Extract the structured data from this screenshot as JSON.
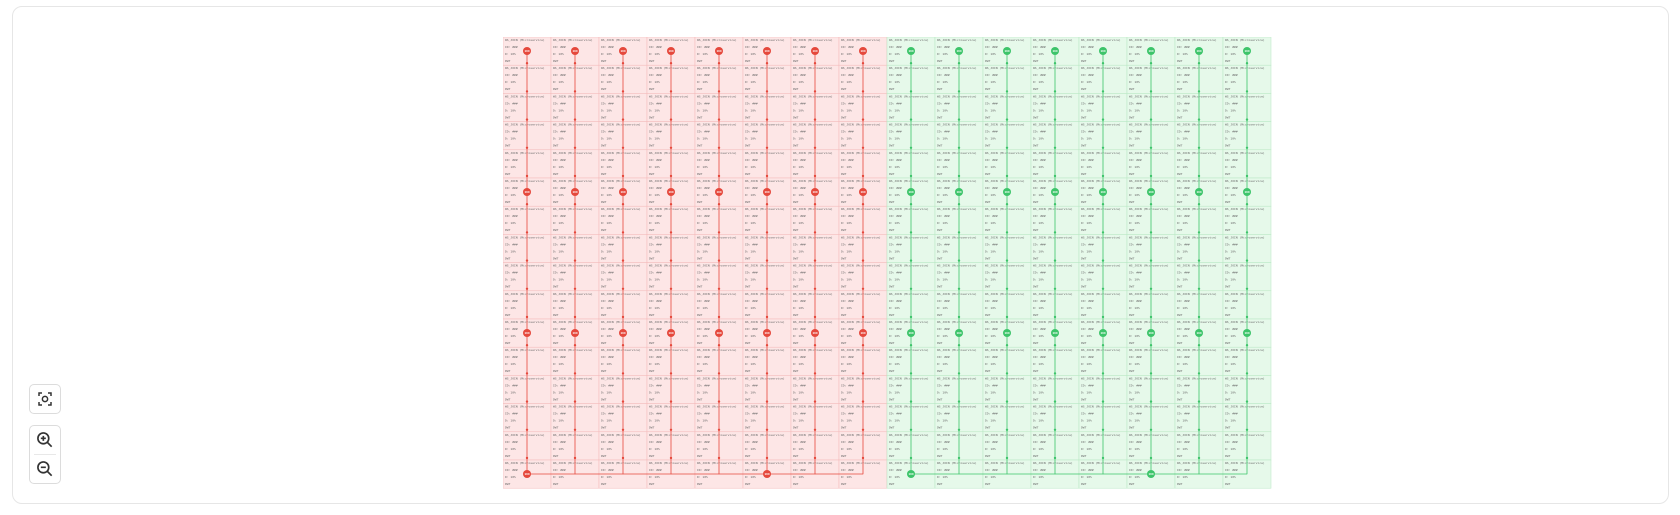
{
  "colors": {
    "red_fill": "#fde6e6",
    "red_stroke": "#f3b9b9",
    "red_line": "#e5483c",
    "green_fill": "#e6f9ea",
    "green_stroke": "#b7e7c2",
    "green_line": "#3dc46a"
  },
  "node_template": {
    "line1": "WS_JOIN (Microservice)",
    "line2": "ID: ###",
    "line3": "D: 10%",
    "line4": "DWT"
  },
  "badge_label": "100",
  "columns": [
    {
      "group": "red"
    },
    {
      "group": "red"
    },
    {
      "group": "red"
    },
    {
      "group": "red"
    },
    {
      "group": "red"
    },
    {
      "group": "red"
    },
    {
      "group": "red"
    },
    {
      "group": "red"
    },
    {
      "group": "green"
    },
    {
      "group": "green"
    },
    {
      "group": "green"
    },
    {
      "group": "green"
    },
    {
      "group": "green"
    },
    {
      "group": "green"
    },
    {
      "group": "green"
    },
    {
      "group": "green"
    }
  ],
  "row_count": 16,
  "badge_rows": [
    0,
    5,
    10
  ],
  "bottom_badge_columns": [
    0,
    5,
    8,
    13
  ],
  "controls": {
    "fit_icon": "fit-screen-icon",
    "zoom_in_icon": "zoom-in-icon",
    "zoom_out_icon": "zoom-out-icon"
  }
}
